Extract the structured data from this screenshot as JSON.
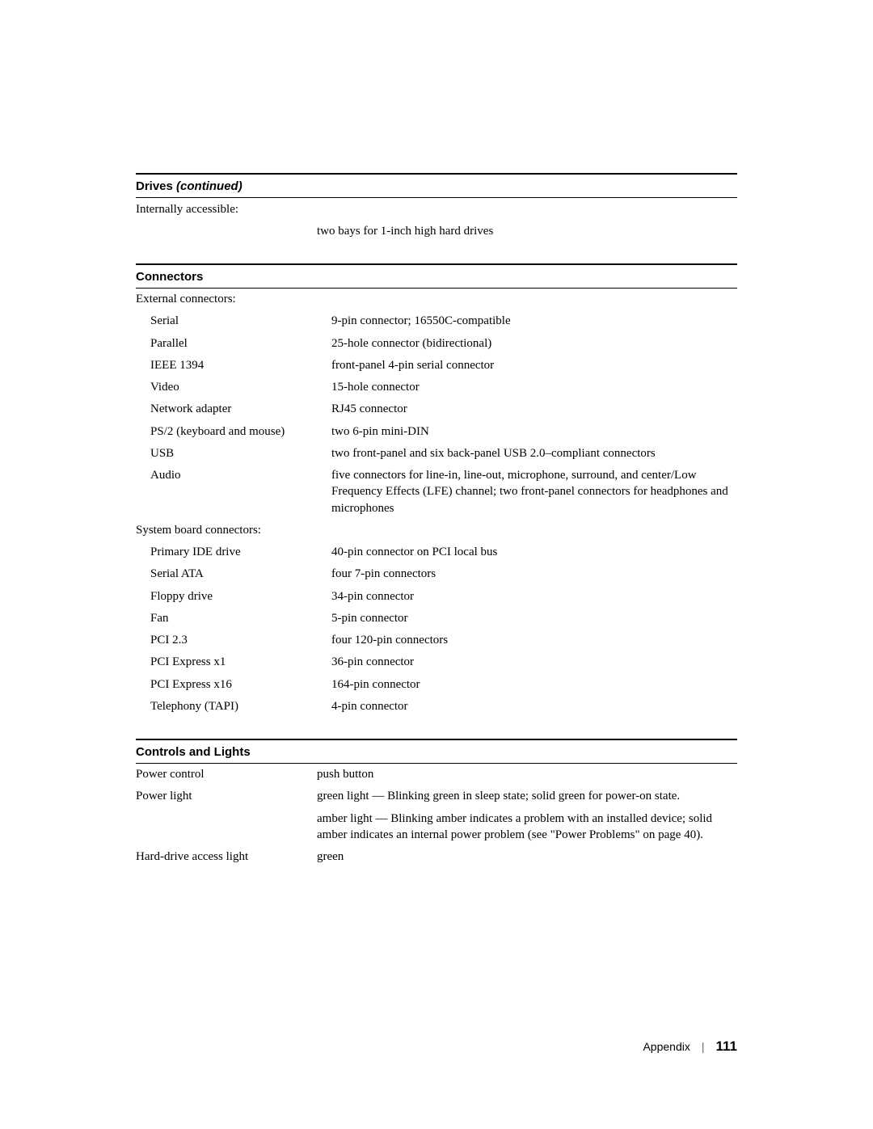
{
  "drives": {
    "header_main": "Drives ",
    "header_cont": "(continued)",
    "rows": [
      {
        "label": "Internally accessible:",
        "value": ""
      },
      {
        "label": "",
        "value": "two bays for 1-inch high hard drives"
      }
    ]
  },
  "connectors": {
    "header": "Connectors",
    "groups": [
      {
        "title": "External connectors:",
        "rows": [
          {
            "label": "Serial",
            "value": "9-pin connector; 16550C-compatible"
          },
          {
            "label": "Parallel",
            "value": "25-hole connector (bidirectional)"
          },
          {
            "label": "IEEE 1394",
            "value": "front-panel 4-pin serial connector"
          },
          {
            "label": "Video",
            "value": "15-hole connector"
          },
          {
            "label": "Network adapter",
            "value": "RJ45 connector"
          },
          {
            "label": "PS/2 (keyboard and mouse)",
            "value": "two 6-pin mini-DIN"
          },
          {
            "label": "USB",
            "value": "two front-panel and six back-panel USB 2.0–compliant connectors"
          },
          {
            "label": "Audio",
            "value": "five connectors for line-in, line-out, microphone, surround, and center/Low Frequency Effects (LFE) channel; two front-panel connectors for headphones and microphones"
          }
        ]
      },
      {
        "title": "System board connectors:",
        "rows": [
          {
            "label": "Primary IDE drive",
            "value": "40-pin connector on PCI local bus"
          },
          {
            "label": "Serial ATA",
            "value": "four 7-pin connectors"
          },
          {
            "label": "Floppy drive",
            "value": "34-pin connector"
          },
          {
            "label": "Fan",
            "value": "5-pin connector"
          },
          {
            "label": "PCI 2.3",
            "value": "four 120-pin connectors"
          },
          {
            "label": "PCI Express x1",
            "value": "36-pin connector"
          },
          {
            "label": "PCI Express x16",
            "value": "164-pin connector"
          },
          {
            "label": "Telephony (TAPI)",
            "value": "4-pin connector"
          }
        ]
      }
    ]
  },
  "controls": {
    "header": "Controls and Lights",
    "rows": [
      {
        "label": "Power control",
        "value": "push button"
      },
      {
        "label": "Power light",
        "value": "green light — Blinking green in sleep state; solid green for power-on state."
      },
      {
        "label": "",
        "value": "amber light — Blinking amber indicates a problem with an installed device; solid amber indicates an internal power problem (see \"Power Problems\" on page 40)."
      },
      {
        "label": "Hard-drive access light",
        "value": "green"
      }
    ]
  },
  "footer": {
    "section": "Appendix",
    "page": "111"
  }
}
